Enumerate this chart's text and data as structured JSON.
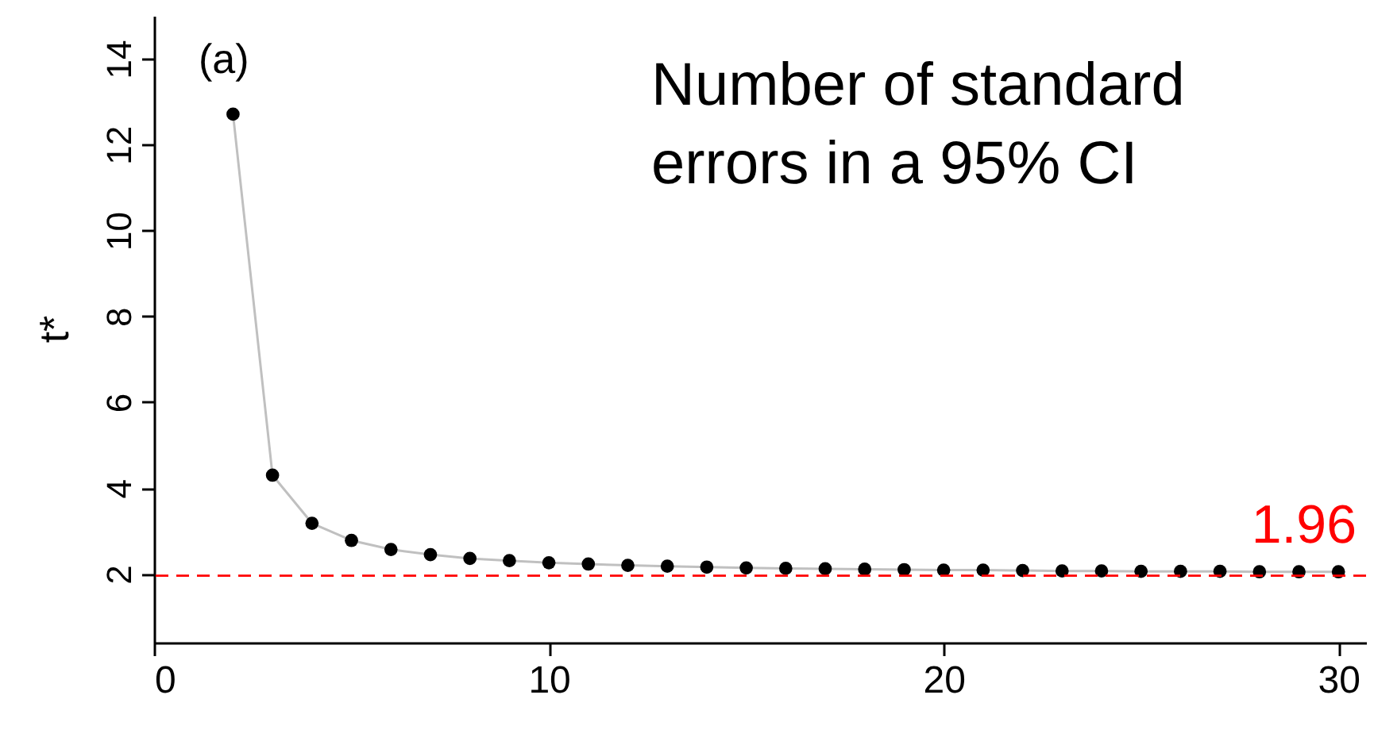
{
  "chart_data": {
    "type": "scatter",
    "ylabel": "t*",
    "x": [
      2,
      3,
      4,
      5,
      6,
      7,
      8,
      9,
      10,
      11,
      12,
      13,
      14,
      15,
      16,
      17,
      18,
      19,
      20,
      21,
      22,
      23,
      24,
      25,
      26,
      27,
      28,
      29,
      30
    ],
    "series": [
      {
        "type": "line",
        "color": "#c0c0c0",
        "marker": "none",
        "values": [
          12.71,
          4.3,
          3.18,
          2.78,
          2.57,
          2.45,
          2.36,
          2.31,
          2.26,
          2.23,
          2.2,
          2.18,
          2.16,
          2.14,
          2.13,
          2.12,
          2.11,
          2.1,
          2.09,
          2.09,
          2.08,
          2.07,
          2.07,
          2.06,
          2.06,
          2.06,
          2.05,
          2.05,
          2.05
        ]
      },
      {
        "color": "#000000",
        "marker": "circle",
        "values": [
          12.71,
          4.3,
          3.18,
          2.78,
          2.57,
          2.45,
          2.36,
          2.31,
          2.26,
          2.23,
          2.2,
          2.18,
          2.16,
          2.14,
          2.13,
          2.12,
          2.11,
          2.1,
          2.09,
          2.09,
          2.08,
          2.07,
          2.07,
          2.06,
          2.06,
          2.06,
          2.05,
          2.05,
          2.05
        ]
      }
    ],
    "xlim": [
      0,
      30.7
    ],
    "xticks": [
      0,
      10,
      20,
      30
    ],
    "ylim": [
      0.4,
      15
    ],
    "yticks": [
      2,
      4,
      6,
      8,
      10,
      12,
      14
    ],
    "grid": false,
    "ref_lines": [
      {
        "axis": "y",
        "value": 1.96,
        "label": "1.96",
        "color": "#ff0000",
        "line_style": "dashed"
      }
    ],
    "annotations": [
      "(a)",
      "Number of standard\nerrors in a 95% CI"
    ]
  }
}
